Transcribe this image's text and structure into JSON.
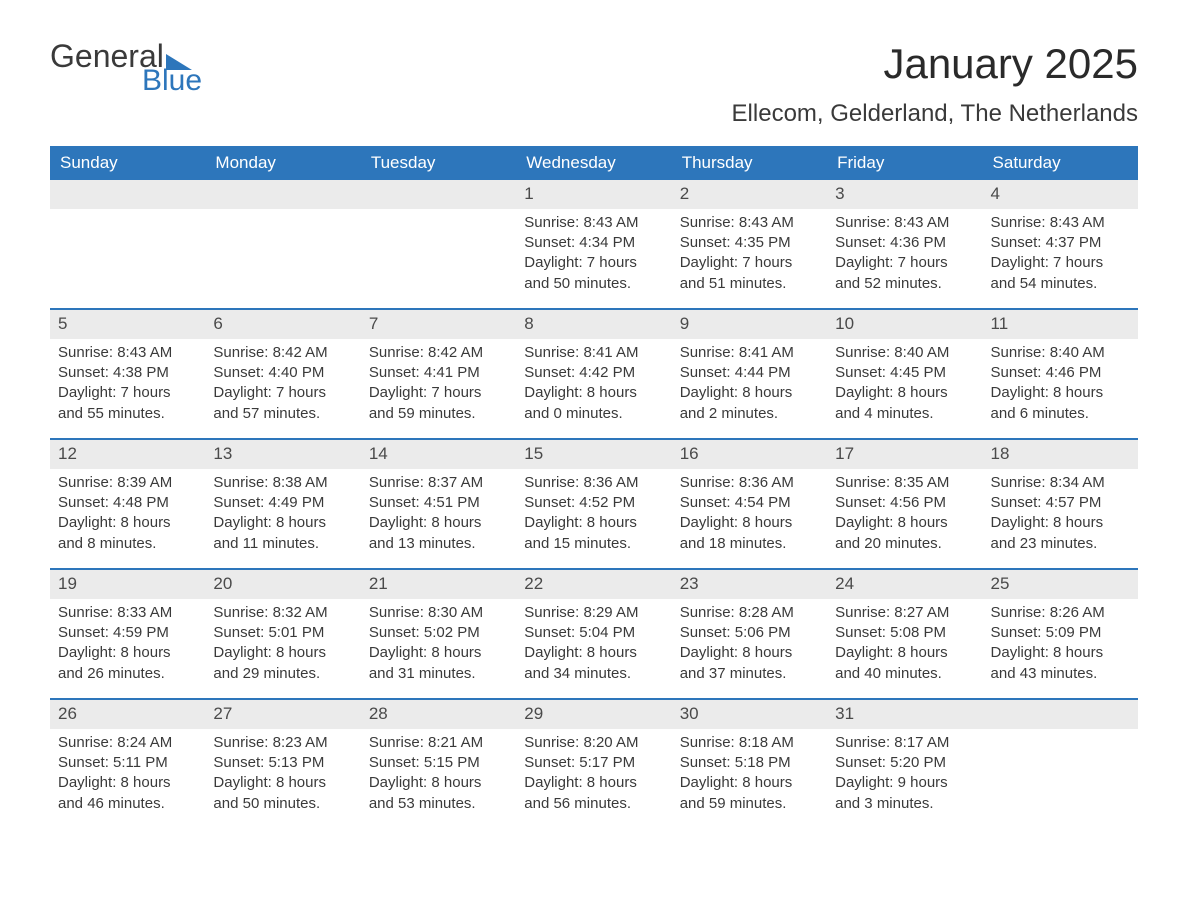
{
  "logo": {
    "text1": "General",
    "text2": "Blue",
    "flag_color": "#2d76bb"
  },
  "title": "January 2025",
  "location": "Ellecom, Gelderland, The Netherlands",
  "colors": {
    "header_bg": "#2d76bb",
    "header_text": "#ffffff",
    "daynum_bg": "#ebebeb",
    "text": "#3a3a3a",
    "rule": "#2d76bb"
  },
  "day_names": [
    "Sunday",
    "Monday",
    "Tuesday",
    "Wednesday",
    "Thursday",
    "Friday",
    "Saturday"
  ],
  "weeks": [
    [
      null,
      null,
      null,
      {
        "n": "1",
        "sunrise": "8:43 AM",
        "sunset": "4:34 PM",
        "dl1": "7 hours",
        "dl2": "and 50 minutes."
      },
      {
        "n": "2",
        "sunrise": "8:43 AM",
        "sunset": "4:35 PM",
        "dl1": "7 hours",
        "dl2": "and 51 minutes."
      },
      {
        "n": "3",
        "sunrise": "8:43 AM",
        "sunset": "4:36 PM",
        "dl1": "7 hours",
        "dl2": "and 52 minutes."
      },
      {
        "n": "4",
        "sunrise": "8:43 AM",
        "sunset": "4:37 PM",
        "dl1": "7 hours",
        "dl2": "and 54 minutes."
      }
    ],
    [
      {
        "n": "5",
        "sunrise": "8:43 AM",
        "sunset": "4:38 PM",
        "dl1": "7 hours",
        "dl2": "and 55 minutes."
      },
      {
        "n": "6",
        "sunrise": "8:42 AM",
        "sunset": "4:40 PM",
        "dl1": "7 hours",
        "dl2": "and 57 minutes."
      },
      {
        "n": "7",
        "sunrise": "8:42 AM",
        "sunset": "4:41 PM",
        "dl1": "7 hours",
        "dl2": "and 59 minutes."
      },
      {
        "n": "8",
        "sunrise": "8:41 AM",
        "sunset": "4:42 PM",
        "dl1": "8 hours",
        "dl2": "and 0 minutes."
      },
      {
        "n": "9",
        "sunrise": "8:41 AM",
        "sunset": "4:44 PM",
        "dl1": "8 hours",
        "dl2": "and 2 minutes."
      },
      {
        "n": "10",
        "sunrise": "8:40 AM",
        "sunset": "4:45 PM",
        "dl1": "8 hours",
        "dl2": "and 4 minutes."
      },
      {
        "n": "11",
        "sunrise": "8:40 AM",
        "sunset": "4:46 PM",
        "dl1": "8 hours",
        "dl2": "and 6 minutes."
      }
    ],
    [
      {
        "n": "12",
        "sunrise": "8:39 AM",
        "sunset": "4:48 PM",
        "dl1": "8 hours",
        "dl2": "and 8 minutes."
      },
      {
        "n": "13",
        "sunrise": "8:38 AM",
        "sunset": "4:49 PM",
        "dl1": "8 hours",
        "dl2": "and 11 minutes."
      },
      {
        "n": "14",
        "sunrise": "8:37 AM",
        "sunset": "4:51 PM",
        "dl1": "8 hours",
        "dl2": "and 13 minutes."
      },
      {
        "n": "15",
        "sunrise": "8:36 AM",
        "sunset": "4:52 PM",
        "dl1": "8 hours",
        "dl2": "and 15 minutes."
      },
      {
        "n": "16",
        "sunrise": "8:36 AM",
        "sunset": "4:54 PM",
        "dl1": "8 hours",
        "dl2": "and 18 minutes."
      },
      {
        "n": "17",
        "sunrise": "8:35 AM",
        "sunset": "4:56 PM",
        "dl1": "8 hours",
        "dl2": "and 20 minutes."
      },
      {
        "n": "18",
        "sunrise": "8:34 AM",
        "sunset": "4:57 PM",
        "dl1": "8 hours",
        "dl2": "and 23 minutes."
      }
    ],
    [
      {
        "n": "19",
        "sunrise": "8:33 AM",
        "sunset": "4:59 PM",
        "dl1": "8 hours",
        "dl2": "and 26 minutes."
      },
      {
        "n": "20",
        "sunrise": "8:32 AM",
        "sunset": "5:01 PM",
        "dl1": "8 hours",
        "dl2": "and 29 minutes."
      },
      {
        "n": "21",
        "sunrise": "8:30 AM",
        "sunset": "5:02 PM",
        "dl1": "8 hours",
        "dl2": "and 31 minutes."
      },
      {
        "n": "22",
        "sunrise": "8:29 AM",
        "sunset": "5:04 PM",
        "dl1": "8 hours",
        "dl2": "and 34 minutes."
      },
      {
        "n": "23",
        "sunrise": "8:28 AM",
        "sunset": "5:06 PM",
        "dl1": "8 hours",
        "dl2": "and 37 minutes."
      },
      {
        "n": "24",
        "sunrise": "8:27 AM",
        "sunset": "5:08 PM",
        "dl1": "8 hours",
        "dl2": "and 40 minutes."
      },
      {
        "n": "25",
        "sunrise": "8:26 AM",
        "sunset": "5:09 PM",
        "dl1": "8 hours",
        "dl2": "and 43 minutes."
      }
    ],
    [
      {
        "n": "26",
        "sunrise": "8:24 AM",
        "sunset": "5:11 PM",
        "dl1": "8 hours",
        "dl2": "and 46 minutes."
      },
      {
        "n": "27",
        "sunrise": "8:23 AM",
        "sunset": "5:13 PM",
        "dl1": "8 hours",
        "dl2": "and 50 minutes."
      },
      {
        "n": "28",
        "sunrise": "8:21 AM",
        "sunset": "5:15 PM",
        "dl1": "8 hours",
        "dl2": "and 53 minutes."
      },
      {
        "n": "29",
        "sunrise": "8:20 AM",
        "sunset": "5:17 PM",
        "dl1": "8 hours",
        "dl2": "and 56 minutes."
      },
      {
        "n": "30",
        "sunrise": "8:18 AM",
        "sunset": "5:18 PM",
        "dl1": "8 hours",
        "dl2": "and 59 minutes."
      },
      {
        "n": "31",
        "sunrise": "8:17 AM",
        "sunset": "5:20 PM",
        "dl1": "9 hours",
        "dl2": "and 3 minutes."
      },
      null
    ]
  ],
  "labels": {
    "sunrise": "Sunrise: ",
    "sunset": "Sunset: ",
    "daylight": "Daylight: "
  }
}
